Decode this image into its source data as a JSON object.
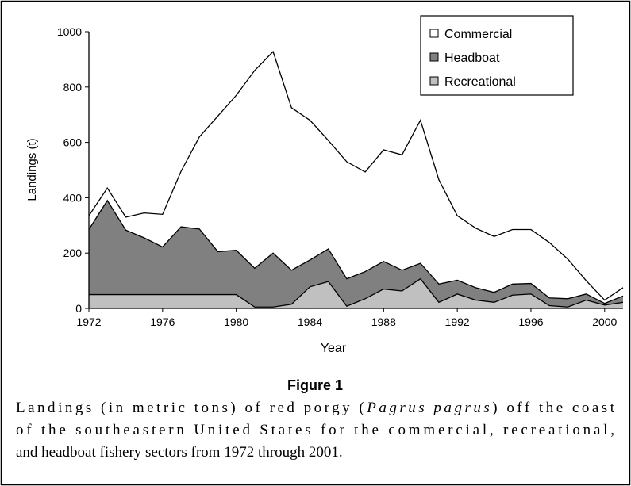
{
  "chart_data": {
    "type": "stacked-area",
    "x_label": "Year",
    "y_label": "Landings (t)",
    "x": [
      1972,
      1973,
      1974,
      1975,
      1976,
      1977,
      1978,
      1979,
      1980,
      1981,
      1982,
      1983,
      1984,
      1985,
      1986,
      1987,
      1988,
      1989,
      1990,
      1991,
      1992,
      1993,
      1994,
      1995,
      1996,
      1997,
      1998,
      1999,
      2000,
      2001
    ],
    "series": [
      {
        "name": "Recreational",
        "color": "#c0c0c0",
        "values": [
          50,
          50,
          50,
          50,
          50,
          50,
          50,
          50,
          50,
          5,
          5,
          15,
          78,
          97,
          8,
          35,
          70,
          63,
          107,
          22,
          52,
          30,
          22,
          48,
          52,
          10,
          5,
          30,
          12,
          22
        ]
      },
      {
        "name": "Headboat",
        "color": "#808080",
        "values": [
          235,
          340,
          233,
          205,
          172,
          245,
          237,
          155,
          160,
          140,
          195,
          123,
          97,
          118,
          99,
          98,
          100,
          75,
          56,
          66,
          50,
          45,
          36,
          40,
          38,
          28,
          30,
          22,
          6,
          23
        ]
      },
      {
        "name": "Commercial",
        "color": "#ffffff",
        "values": [
          50,
          45,
          47,
          90,
          118,
          200,
          333,
          490,
          560,
          715,
          728,
          587,
          505,
          392,
          423,
          360,
          403,
          417,
          517,
          377,
          233,
          215,
          202,
          197,
          195,
          200,
          143,
          48,
          12,
          30
        ]
      }
    ],
    "legend_order": [
      2,
      1,
      0
    ],
    "legend": "upper right",
    "xlim": [
      1972,
      2001
    ],
    "xticks": [
      1972,
      1976,
      1980,
      1984,
      1988,
      1992,
      1996,
      2000
    ],
    "ylim": [
      0,
      1000
    ],
    "yticks": [
      0,
      200,
      400,
      600,
      800,
      1000
    ]
  },
  "figure_label": "Figure 1",
  "caption": {
    "line1": [
      "Landings (in metric tons) of red porgy (",
      "Pagrus pagrus",
      ") off the coast"
    ],
    "line2": "of the southeastern United States for the commercial, recreational,",
    "line3": "and headboat fishery sectors from 1972 through 2001."
  }
}
